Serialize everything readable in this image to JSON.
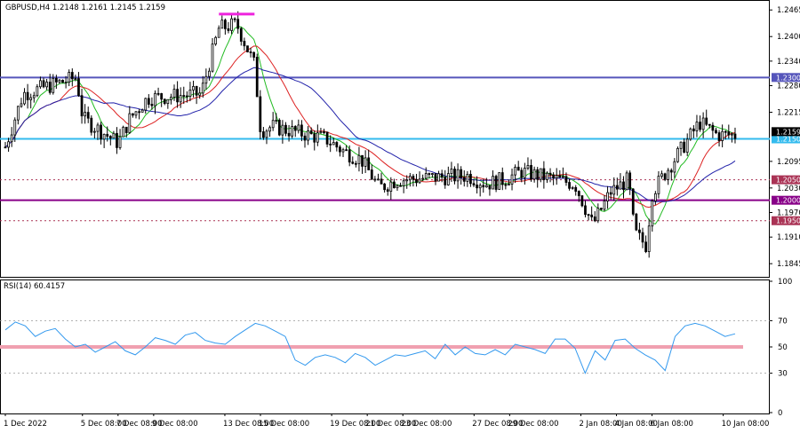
{
  "header": {
    "symbol_info": "GBPUSD,H4  1.2148 1.2161 1.2145 1.2159",
    "rsi_label": "RSI(14) 60.4157"
  },
  "colors": {
    "background": "#ffffff",
    "frame": "#000000",
    "candles": "#000000",
    "ma_fast": "#22bb22",
    "ma_mid": "#dd2222",
    "ma_slow": "#2222aa",
    "rsi_line": "#3399ee",
    "level_blue": "#5555bb",
    "level_cyan": "#33bbee",
    "level_purple": "#880088",
    "level_dotted": "#aa3355",
    "marker_magenta": "#ee22dd",
    "rsi_band": "#f0a0b0"
  },
  "chart_data": [
    {
      "type": "candlestick",
      "title": "GBPUSD,H4",
      "ohlc_readout": {
        "open": 1.2148,
        "high": 1.2161,
        "low": 1.2145,
        "close": 1.2159
      },
      "ylim": [
        1.1815,
        1.2485
      ],
      "y_ticks": [
        "1.2465",
        "1.2400",
        "1.2340",
        "1.2280",
        "1.2215",
        "1.2095",
        "1.2030",
        "1.1970",
        "1.1910",
        "1.1845"
      ],
      "x_ticks": [
        "1 Dec 2022",
        "5 Dec 08:00",
        "7 Dec 08:00",
        "9 Dec 08:00",
        "13 Dec 08:00",
        "15 Dec 08:00",
        "19 Dec 08:00",
        "21 Dec 08:00",
        "23 Dec 08:00",
        "27 Dec 08:00",
        "29 Dec 08:00",
        "2 Jan 08:00",
        "4 Jan 08:00",
        "6 Jan 08:00",
        "10 Jan 08:00"
      ],
      "horizontal_levels": [
        {
          "value": 1.23,
          "label": "1.2300",
          "style": "solid",
          "color": "#5555bb"
        },
        {
          "value": 1.215,
          "label": "1.2150",
          "style": "solid",
          "color": "#33bbee"
        },
        {
          "value": 1.205,
          "label": "1.2050",
          "style": "dotted",
          "color": "#aa3355"
        },
        {
          "value": 1.2,
          "label": "1.2000",
          "style": "solid",
          "color": "#880088"
        },
        {
          "value": 1.195,
          "label": "1.1950",
          "style": "dotted",
          "color": "#aa3355"
        }
      ],
      "current_price": {
        "value": 1.2159,
        "label": "1.2159"
      },
      "resistance_marker": {
        "value": 1.2455,
        "from_date": "13 Dec",
        "to_date": "15 Dec"
      },
      "moving_averages": [
        {
          "name": "fast",
          "color": "#22bb22"
        },
        {
          "name": "medium",
          "color": "#dd2222"
        },
        {
          "name": "slow",
          "color": "#2222aa"
        }
      ],
      "price_path": [
        [
          "1 Dec 2022",
          1.213
        ],
        [
          "2 Dec",
          1.226
        ],
        [
          "5 Dec",
          1.23
        ],
        [
          "5 Dec",
          1.22
        ],
        [
          "6 Dec",
          1.218
        ],
        [
          "7 Dec",
          1.215
        ],
        [
          "7 Dec",
          1.214
        ],
        [
          "8 Dec",
          1.22
        ],
        [
          "9 Dec",
          1.225
        ],
        [
          "12 Dec",
          1.226
        ],
        [
          "13 Dec",
          1.242
        ],
        [
          "14 Dec",
          1.243
        ],
        [
          "15 Dec",
          1.233
        ],
        [
          "15 Dec",
          1.217
        ],
        [
          "16 Dec",
          1.218
        ],
        [
          "19 Dec",
          1.215
        ],
        [
          "20 Dec",
          1.212
        ],
        [
          "21 Dec",
          1.21
        ],
        [
          "22 Dec",
          1.203
        ],
        [
          "23 Dec",
          1.205
        ],
        [
          "27 Dec",
          1.206
        ],
        [
          "28 Dec",
          1.204
        ],
        [
          "29 Dec",
          1.205
        ],
        [
          "30 Dec",
          1.207
        ],
        [
          "2 Jan",
          1.204
        ],
        [
          "3 Jan",
          1.194
        ],
        [
          "4 Jan",
          1.202
        ],
        [
          "5 Jan",
          1.205
        ],
        [
          "5 Jan",
          1.192
        ],
        [
          "6 Jan",
          1.189
        ],
        [
          "6 Jan",
          1.202
        ],
        [
          "9 Jan",
          1.219
        ],
        [
          "10 Jan",
          1.216
        ],
        [
          "11 Jan",
          1.2159
        ]
      ]
    },
    {
      "type": "line",
      "title": "RSI(14) 60.4157",
      "ylim": [
        0,
        100
      ],
      "y_ticks": [
        "100",
        "70",
        "50",
        "30",
        "0"
      ],
      "levels": [
        70,
        50,
        30
      ],
      "highlight_level": 50,
      "current_value": 60.4157,
      "series": [
        {
          "name": "RSI(14)",
          "values": [
            63,
            69,
            66,
            58,
            62,
            64,
            56,
            50,
            52,
            46,
            50,
            54,
            47,
            44,
            50,
            57,
            55,
            52,
            59,
            61,
            55,
            53,
            52,
            58,
            63,
            68,
            66,
            62,
            58,
            40,
            36,
            42,
            44,
            42,
            38,
            45,
            42,
            36,
            40,
            44,
            43,
            45,
            47,
            41,
            52,
            44,
            50,
            45,
            44,
            48,
            44,
            52,
            50,
            48,
            45,
            56,
            56,
            49,
            30,
            47,
            40,
            55,
            56,
            49,
            44,
            40,
            32,
            58,
            66,
            68,
            66,
            62,
            58,
            60
          ]
        }
      ]
    }
  ]
}
